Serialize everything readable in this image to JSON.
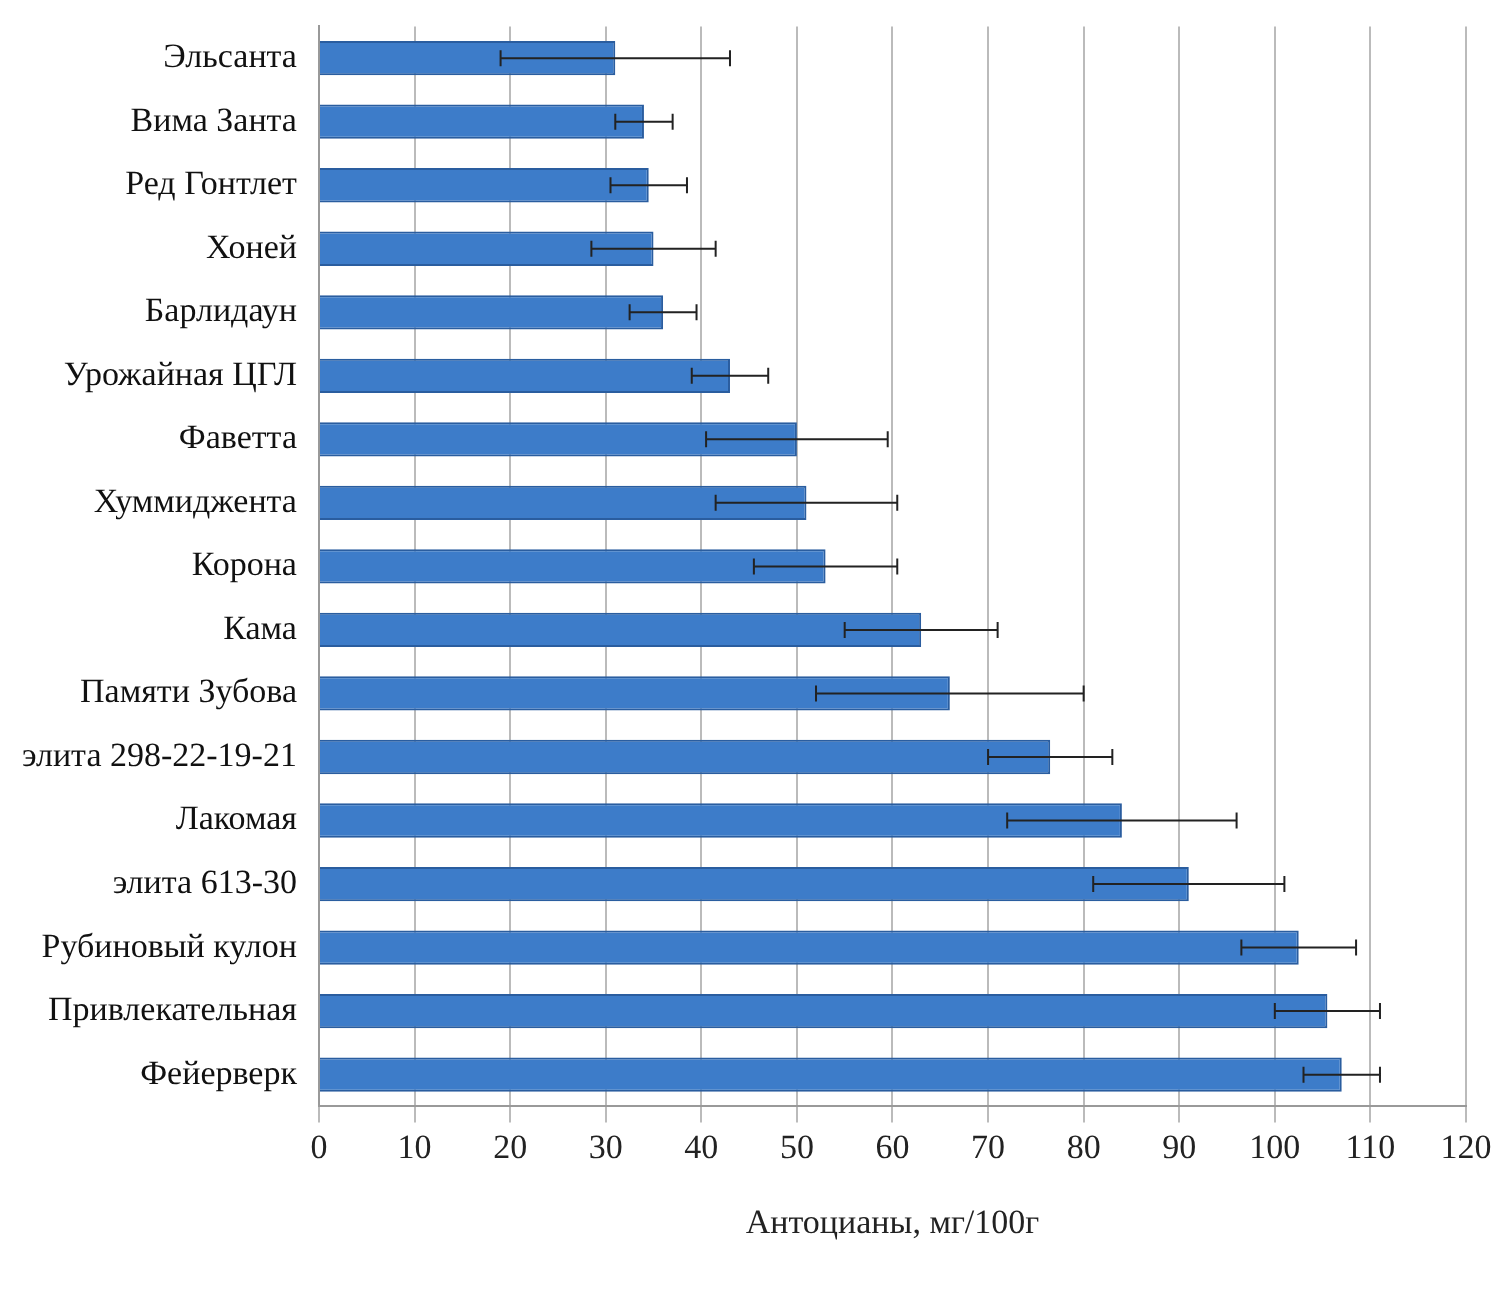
{
  "chart_data": {
    "type": "bar",
    "orientation": "horizontal",
    "xlabel": "Антоцианы, мг/100г",
    "categories": [
      "Эльсанта",
      "Вима Занта",
      "Ред Гонтлет",
      "Хоней",
      "Барлидаун",
      "Урожайная ЦГЛ",
      "Фаветта",
      "Хуммиджента",
      "Корона",
      "Кама",
      "Памяти Зубова",
      "элита 298-22-19-21",
      "Лакомая",
      "элита 613-30",
      "Рубиновый кулон",
      "Привлекательная",
      "Фейерверк"
    ],
    "values": [
      31,
      34,
      34.5,
      35,
      36,
      43,
      50,
      51,
      53,
      63,
      66,
      76.5,
      84,
      91,
      102.5,
      105.5,
      107
    ],
    "errors": [
      12,
      3,
      4,
      6.5,
      3.5,
      4,
      9.5,
      9.5,
      7.5,
      8,
      14,
      6.5,
      12,
      10,
      6,
      5.5,
      4
    ],
    "color": "#3d7cc9",
    "xlim": [
      0,
      120
    ],
    "xticks": [
      0,
      10,
      20,
      30,
      40,
      50,
      60,
      70,
      80,
      90,
      100,
      110,
      120
    ],
    "grid": "x"
  }
}
